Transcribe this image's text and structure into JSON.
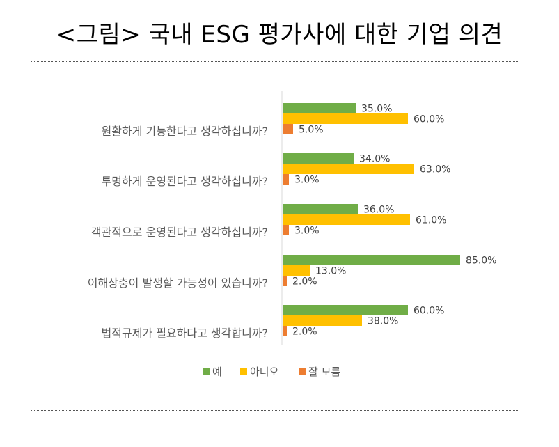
{
  "title": "<그림> 국내 ESG 평가사에 대한 기업 의견",
  "chart_data": {
    "type": "bar",
    "orientation": "horizontal",
    "categories": [
      "원활하게 기능한다고 생각하십니까?",
      "투명하게 운영된다고 생각하십니까?",
      "객관적으로 운영된다고 생각하십니까?",
      "이해상충이 발생할 가능성이 있습니까?",
      "법적규제가 필요하다고 생각합니까?"
    ],
    "series": [
      {
        "name": "예",
        "color": "#70AD47",
        "values": [
          35.0,
          34.0,
          36.0,
          85.0,
          60.0
        ]
      },
      {
        "name": "아니오",
        "color": "#FFC000",
        "values": [
          60.0,
          63.0,
          61.0,
          13.0,
          38.0
        ]
      },
      {
        "name": "잘 모름",
        "color": "#ED7D31",
        "values": [
          5.0,
          3.0,
          3.0,
          2.0,
          2.0
        ]
      }
    ],
    "value_format": "0.0%",
    "xlim": [
      0,
      100
    ],
    "grid": false,
    "legend_position": "bottom"
  }
}
